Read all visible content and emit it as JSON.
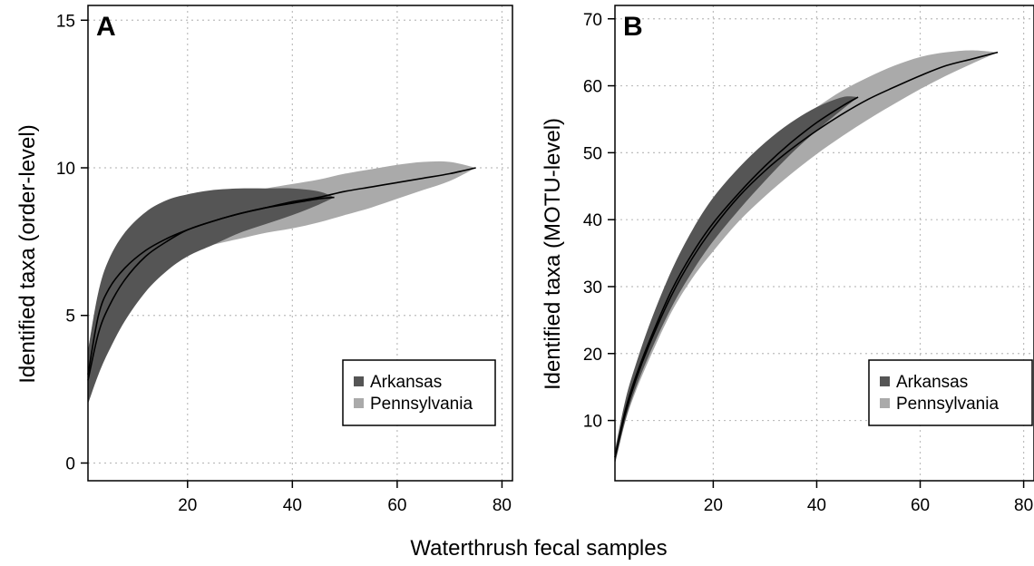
{
  "figure": {
    "xlabel": "Waterthrush fecal samples"
  },
  "chart_data": [
    {
      "type": "area",
      "panel": "A",
      "ylabel": "Identified taxa (order-level)",
      "xlim": [
        1,
        82
      ],
      "ylim": [
        -0.6,
        15.5
      ],
      "xticks": [
        20,
        40,
        60,
        80
      ],
      "yticks": [
        0,
        5,
        10,
        15
      ],
      "grid": true,
      "legend_position": "bottom-right",
      "colors": {
        "Arkansas": "#555555",
        "Pennsylvania": "#aaaaaa",
        "mean": "#000000"
      },
      "series": [
        {
          "name": "Arkansas",
          "x": [
            1,
            3,
            5,
            8,
            12,
            16,
            20,
            25,
            30,
            35,
            40,
            45,
            48
          ],
          "mean": [
            2.8,
            4.4,
            5.3,
            6.2,
            7.0,
            7.5,
            7.9,
            8.2,
            8.45,
            8.65,
            8.8,
            8.95,
            9.0
          ],
          "lower": [
            2.0,
            3.0,
            3.8,
            4.8,
            5.8,
            6.5,
            7.0,
            7.4,
            7.8,
            8.1,
            8.4,
            8.75,
            9.0
          ],
          "upper": [
            3.8,
            5.8,
            6.9,
            7.8,
            8.5,
            8.9,
            9.1,
            9.25,
            9.3,
            9.3,
            9.3,
            9.2,
            9.0
          ]
        },
        {
          "name": "Pennsylvania",
          "x": [
            1,
            3,
            5,
            8,
            12,
            16,
            20,
            25,
            30,
            35,
            40,
            45,
            50,
            55,
            60,
            65,
            70,
            75
          ],
          "mean": [
            3.0,
            5.0,
            5.9,
            6.6,
            7.2,
            7.6,
            7.9,
            8.2,
            8.45,
            8.65,
            8.85,
            9.0,
            9.2,
            9.35,
            9.5,
            9.65,
            9.8,
            10.0
          ],
          "lower": [
            2.6,
            4.4,
            5.3,
            6.0,
            6.6,
            6.9,
            7.15,
            7.4,
            7.6,
            7.8,
            7.95,
            8.15,
            8.4,
            8.65,
            8.95,
            9.25,
            9.55,
            10.0
          ],
          "upper": [
            3.8,
            5.8,
            6.6,
            7.2,
            7.9,
            8.3,
            8.6,
            8.9,
            9.1,
            9.3,
            9.45,
            9.6,
            9.8,
            9.95,
            10.1,
            10.2,
            10.2,
            10.0
          ]
        }
      ]
    },
    {
      "type": "area",
      "panel": "B",
      "ylabel": "Identified taxa (MOTU-level)",
      "xlim": [
        1,
        82
      ],
      "ylim": [
        1,
        72
      ],
      "xticks": [
        20,
        40,
        60,
        80
      ],
      "yticks": [
        10,
        20,
        30,
        40,
        50,
        60,
        70
      ],
      "grid": true,
      "legend_position": "bottom-right",
      "colors": {
        "Arkansas": "#555555",
        "Pennsylvania": "#aaaaaa",
        "mean": "#000000"
      },
      "series": [
        {
          "name": "Arkansas",
          "x": [
            1,
            3,
            5,
            8,
            12,
            16,
            20,
            25,
            30,
            35,
            40,
            45,
            48
          ],
          "mean": [
            4.5,
            11.5,
            16.5,
            22.5,
            29.5,
            35.0,
            39.5,
            44.0,
            48.0,
            51.5,
            54.5,
            57.0,
            58.3
          ],
          "lower": [
            3.5,
            10.0,
            14.8,
            20.5,
            27.0,
            32.3,
            36.8,
            41.5,
            45.8,
            49.8,
            53.3,
            56.5,
            58.3
          ],
          "upper": [
            5.5,
            13.0,
            18.3,
            25.0,
            32.5,
            38.5,
            43.3,
            47.8,
            51.5,
            54.5,
            56.8,
            58.3,
            58.3
          ]
        },
        {
          "name": "Pennsylvania",
          "x": [
            1,
            3,
            5,
            8,
            12,
            16,
            20,
            25,
            30,
            35,
            40,
            45,
            50,
            55,
            60,
            65,
            70,
            75
          ],
          "mean": [
            4.5,
            11.0,
            16.0,
            22.0,
            28.8,
            34.3,
            38.8,
            43.5,
            47.3,
            50.5,
            53.3,
            55.8,
            58.0,
            59.8,
            61.5,
            63.0,
            64.0,
            65.0
          ],
          "lower": [
            3.5,
            9.8,
            14.3,
            19.8,
            26.3,
            31.3,
            35.3,
            39.8,
            43.5,
            46.8,
            49.8,
            52.5,
            55.0,
            57.3,
            59.5,
            61.5,
            63.3,
            65.0
          ],
          "upper": [
            5.5,
            12.3,
            17.5,
            24.0,
            31.3,
            37.0,
            41.8,
            46.8,
            50.8,
            54.0,
            56.8,
            59.3,
            61.3,
            63.0,
            64.3,
            65.0,
            65.3,
            65.0
          ]
        }
      ]
    }
  ]
}
